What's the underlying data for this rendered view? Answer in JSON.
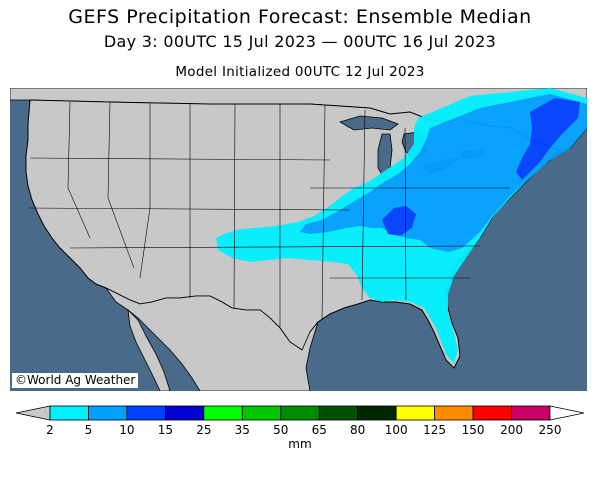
{
  "header": {
    "title": "GEFS Precipitation Forecast: Ensemble Median",
    "period": "Day 3: 00UTC 15 Jul 2023 — 00UTC 16 Jul 2023",
    "init": "Model Initialized 00UTC 12 Jul 2023"
  },
  "map": {
    "copyright": "©World Ag Weather",
    "colors": {
      "ocean": "#4a6a8a",
      "land": "#c8c8c8",
      "borders": "#000000"
    }
  },
  "legend": {
    "units": "mm",
    "ticks": [
      "2",
      "5",
      "10",
      "15",
      "25",
      "35",
      "50",
      "65",
      "80",
      "100",
      "125",
      "150",
      "200",
      "250"
    ],
    "under_color": "#c8c8c8",
    "over_color": "#ffffff",
    "colors": [
      "#00f0ff",
      "#00a0ff",
      "#0040ff",
      "#0000d0",
      "#00ff00",
      "#00c800",
      "#008c00",
      "#005000",
      "#002800",
      "#ffff00",
      "#ff8c00",
      "#ff0000",
      "#c80064",
      "#ff00ff",
      "#a040c8"
    ]
  }
}
